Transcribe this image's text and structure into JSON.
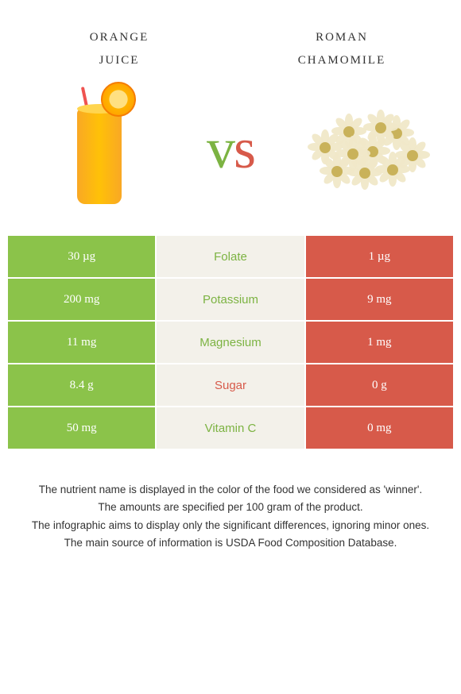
{
  "foods": {
    "left": {
      "title_line1": "orange",
      "title_line2": "juice",
      "color": "#8bc34a"
    },
    "right": {
      "title_line1": "roman",
      "title_line2": "chamomile",
      "color": "#d75a4a"
    }
  },
  "vs_colors": {
    "v": "#7cb342",
    "s": "#d75a4a"
  },
  "mid_background": "#f3f1ea",
  "rows": [
    {
      "label": "Folate",
      "left": "30 µg",
      "right": "1 µg",
      "winner": "left",
      "label_color": "#7cb342"
    },
    {
      "label": "Potassium",
      "left": "200 mg",
      "right": "9 mg",
      "winner": "left",
      "label_color": "#7cb342"
    },
    {
      "label": "Magnesium",
      "left": "11 mg",
      "right": "1 mg",
      "winner": "left",
      "label_color": "#7cb342"
    },
    {
      "label": "Sugar",
      "left": "8.4 g",
      "right": "0 g",
      "winner": "right",
      "label_color": "#d75a4a"
    },
    {
      "label": "Vitamin C",
      "left": "50 mg",
      "right": "0 mg",
      "winner": "left",
      "label_color": "#7cb342"
    }
  ],
  "footnotes": [
    "The nutrient name is displayed in the color of the food we considered as 'winner'.",
    "The amounts are specified per 100 gram of the product.",
    "The infographic aims to display only the significant differences, ignoring minor ones.",
    "The main source of information is USDA Food Composition Database."
  ]
}
